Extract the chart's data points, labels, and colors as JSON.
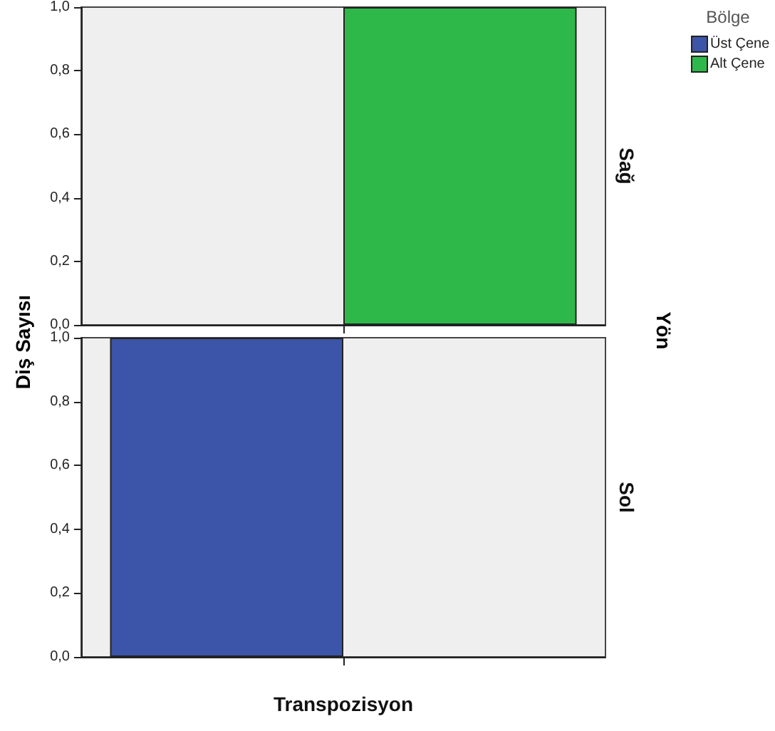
{
  "chart_data": [
    {
      "type": "bar",
      "categories": [
        null
      ],
      "ylabel": "Diş Sayısı",
      "legend_title": "Bölge",
      "legend": "top right",
      "tick_labels": "y",
      "grid": false,
      "annotations": [
        "Sağ",
        "Yön"
      ],
      "ylim": [
        0,
        1
      ],
      "yticks": [
        {
          "value": 0,
          "label": "0,0"
        },
        {
          "value": 0.2,
          "label": "0,2"
        },
        {
          "value": 0.4,
          "label": "0,4"
        },
        {
          "value": 0.6,
          "label": "0,6"
        },
        {
          "value": 0.8,
          "label": "0,8"
        },
        {
          "value": 1,
          "label": "1,0"
        }
      ],
      "series": [
        {
          "name": "Üst Çene",
          "color": "#3c55a8",
          "values": [
            null
          ]
        },
        {
          "name": "Alt Çene",
          "color": "#2fb84a",
          "values": [
            1
          ]
        }
      ]
    },
    {
      "type": "bar",
      "categories": [
        "Transpozisyon"
      ],
      "grid": false,
      "annotations": [
        "Sol"
      ],
      "ylim": [
        0,
        1
      ],
      "yticks": [
        {
          "value": 0,
          "label": "0,0"
        },
        {
          "value": 0.2,
          "label": "0,2"
        },
        {
          "value": 0.4,
          "label": "0,4"
        },
        {
          "value": 0.6,
          "label": "0,6"
        },
        {
          "value": 0.8,
          "label": "0,8"
        },
        {
          "value": 1,
          "label": "1,0"
        }
      ],
      "series": [
        {
          "color": "#3c55a8",
          "values": [
            1
          ]
        },
        {
          "color": "#2fb84a",
          "values": [
            null
          ]
        }
      ]
    }
  ]
}
